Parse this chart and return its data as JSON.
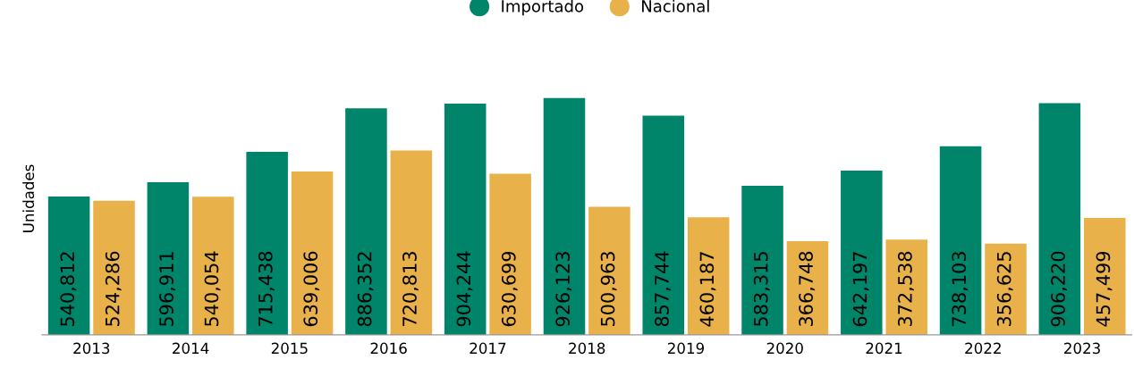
{
  "chart_data": {
    "type": "bar",
    "ylabel": "Unidades",
    "categories": [
      "2013",
      "2014",
      "2015",
      "2016",
      "2017",
      "2018",
      "2019",
      "2020",
      "2021",
      "2022",
      "2023"
    ],
    "series": [
      {
        "name": "Importado",
        "color": "#00846a",
        "values": [
          540812,
          596911,
          715438,
          886352,
          904244,
          926123,
          857744,
          583315,
          642197,
          738103,
          906220
        ],
        "value_labels": [
          "540,812",
          "596,911",
          "715,438",
          "886,352",
          "904,244",
          "926,123",
          "857,744",
          "583,315",
          "642,197",
          "738,103",
          "906,220"
        ]
      },
      {
        "name": "Nacional",
        "color": "#e8b14a",
        "values": [
          524286,
          540054,
          639006,
          720813,
          630699,
          500963,
          460187,
          366748,
          372538,
          356625,
          457499
        ],
        "value_labels": [
          "524,286",
          "540,054",
          "639,006",
          "720,813",
          "630,699",
          "500,963",
          "460,187",
          "366,748",
          "372,538",
          "356,625",
          "457,499"
        ]
      }
    ],
    "legend": "top",
    "grid": false
  }
}
